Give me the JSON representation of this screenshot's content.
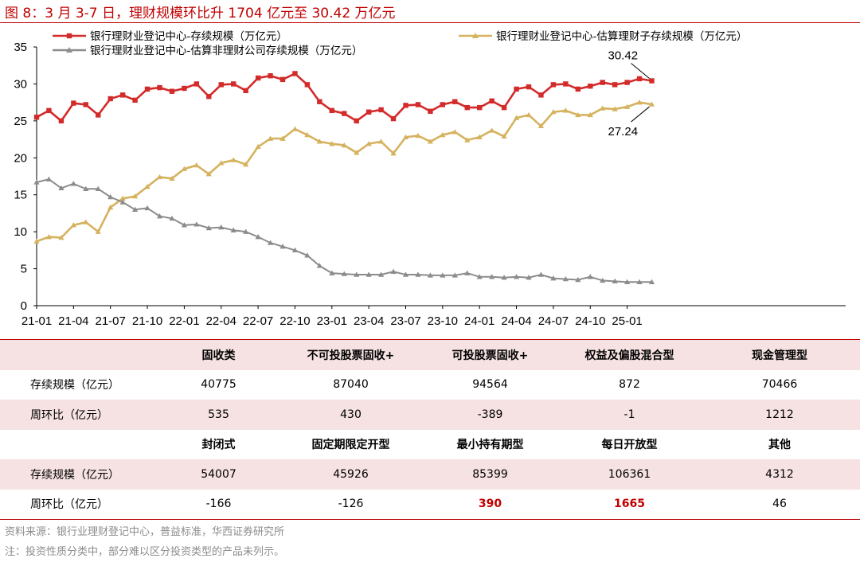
{
  "figure_title": "图 8：3 月 3-7 日，理财规模环比升 1704 亿元至 30.42 万亿元",
  "colors": {
    "accent": "#c00000",
    "series_red": "#d32a2a",
    "series_gold": "#d5b25e",
    "series_gray": "#8c8c8c",
    "band": "#f6e2e2"
  },
  "chart_data": {
    "type": "line",
    "x": [
      "21-01",
      "21-02",
      "21-03",
      "21-04",
      "21-05",
      "21-06",
      "21-07",
      "21-08",
      "21-09",
      "21-10",
      "21-11",
      "21-12",
      "22-01",
      "22-02",
      "22-03",
      "22-04",
      "22-05",
      "22-06",
      "22-07",
      "22-08",
      "22-09",
      "22-10",
      "22-11",
      "22-12",
      "23-01",
      "23-02",
      "23-03",
      "23-04",
      "23-05",
      "23-06",
      "23-07",
      "23-08",
      "23-09",
      "23-10",
      "23-11",
      "23-12",
      "24-01",
      "24-02",
      "24-03",
      "24-04",
      "24-05",
      "24-06",
      "24-07",
      "24-08",
      "24-09",
      "24-10",
      "24-11",
      "24-12",
      "25-01",
      "25-02",
      "25-03"
    ],
    "x_ticks": [
      "21-01",
      "21-04",
      "21-07",
      "21-10",
      "22-01",
      "22-04",
      "22-07",
      "22-10",
      "23-01",
      "23-04",
      "23-07",
      "23-10",
      "24-01",
      "24-04",
      "24-07",
      "24-10",
      "25-01"
    ],
    "ylim": [
      0,
      35
    ],
    "y_ticks": [
      "0",
      "5",
      "10",
      "15",
      "20",
      "25",
      "30",
      "35"
    ],
    "grid": false,
    "legend_position": "top",
    "series": [
      {
        "name": "银行理财业登记中心-存续规模（万亿元）",
        "color": "#d32a2a",
        "marker": "square",
        "values": [
          25.5,
          26.4,
          25.0,
          27.4,
          27.2,
          25.8,
          28.0,
          28.5,
          27.8,
          29.3,
          29.5,
          29.0,
          29.4,
          30.0,
          28.3,
          29.9,
          30.0,
          29.1,
          30.8,
          31.1,
          30.6,
          31.4,
          29.9,
          27.6,
          26.4,
          26.0,
          25.0,
          26.2,
          26.5,
          25.3,
          27.1,
          27.2,
          26.3,
          27.2,
          27.6,
          26.8,
          26.8,
          27.7,
          26.8,
          29.3,
          29.6,
          28.5,
          29.9,
          30.0,
          29.3,
          29.7,
          30.2,
          29.9,
          30.2,
          30.7,
          30.42
        ]
      },
      {
        "name": "银行理财业登记中心-估算理财子存续规模（万亿元）",
        "color": "#d5b25e",
        "marker": "triangle",
        "values": [
          8.7,
          9.3,
          9.2,
          10.9,
          11.3,
          10.0,
          13.3,
          14.5,
          14.8,
          16.1,
          17.4,
          17.2,
          18.5,
          19.0,
          17.8,
          19.3,
          19.7,
          19.1,
          21.5,
          22.6,
          22.6,
          23.9,
          23.1,
          22.2,
          21.9,
          21.7,
          20.7,
          21.9,
          22.2,
          20.6,
          22.8,
          23.0,
          22.2,
          23.1,
          23.5,
          22.4,
          22.8,
          23.7,
          22.9,
          25.4,
          25.8,
          24.3,
          26.2,
          26.4,
          25.8,
          25.8,
          26.7,
          26.6,
          26.9,
          27.5,
          27.24
        ]
      },
      {
        "name": "银行理财业登记中心-估算非理财公司存续规模（万亿元）",
        "color": "#8c8c8c",
        "marker": "triangle",
        "values": [
          16.7,
          17.1,
          15.9,
          16.5,
          15.8,
          15.8,
          14.7,
          14.0,
          13.0,
          13.2,
          12.1,
          11.8,
          10.9,
          11.0,
          10.5,
          10.6,
          10.2,
          10.0,
          9.3,
          8.5,
          8.0,
          7.5,
          6.8,
          5.4,
          4.4,
          4.3,
          4.2,
          4.2,
          4.2,
          4.6,
          4.2,
          4.2,
          4.1,
          4.1,
          4.1,
          4.4,
          3.9,
          3.9,
          3.8,
          3.9,
          3.8,
          4.2,
          3.7,
          3.6,
          3.5,
          3.9,
          3.4,
          3.3,
          3.2,
          3.2,
          3.2
        ]
      }
    ],
    "annotations": [
      {
        "text": "30.42",
        "series": 0,
        "index": 50
      },
      {
        "text": "27.24",
        "series": 1,
        "index": 50
      }
    ]
  },
  "table": {
    "row_label": "存续规模（亿元）",
    "row_label_wow": "周环比（亿元）",
    "groups": [
      {
        "headers": [
          "固收类",
          "不可投股票固收+",
          "可投股票固收+",
          "权益及偏股混合型",
          "现金管理型"
        ],
        "scale": [
          "40775",
          "87040",
          "94564",
          "872",
          "70466"
        ],
        "wow": [
          "535",
          "430",
          "-389",
          "-1",
          "1212"
        ],
        "wow_highlight": [
          false,
          false,
          false,
          false,
          false
        ]
      },
      {
        "headers": [
          "封闭式",
          "固定期限定开型",
          "最小持有期型",
          "每日开放型",
          "其他"
        ],
        "scale": [
          "54007",
          "45926",
          "85399",
          "106361",
          "4312"
        ],
        "wow": [
          "-166",
          "-126",
          "390",
          "1665",
          "46"
        ],
        "wow_highlight": [
          false,
          false,
          true,
          true,
          false
        ]
      }
    ]
  },
  "source_note": "资料来源：银行业理财登记中心，普益标准，华西证券研究所",
  "footnote": "注：投资性质分类中，部分难以区分投资类型的产品未列示。"
}
